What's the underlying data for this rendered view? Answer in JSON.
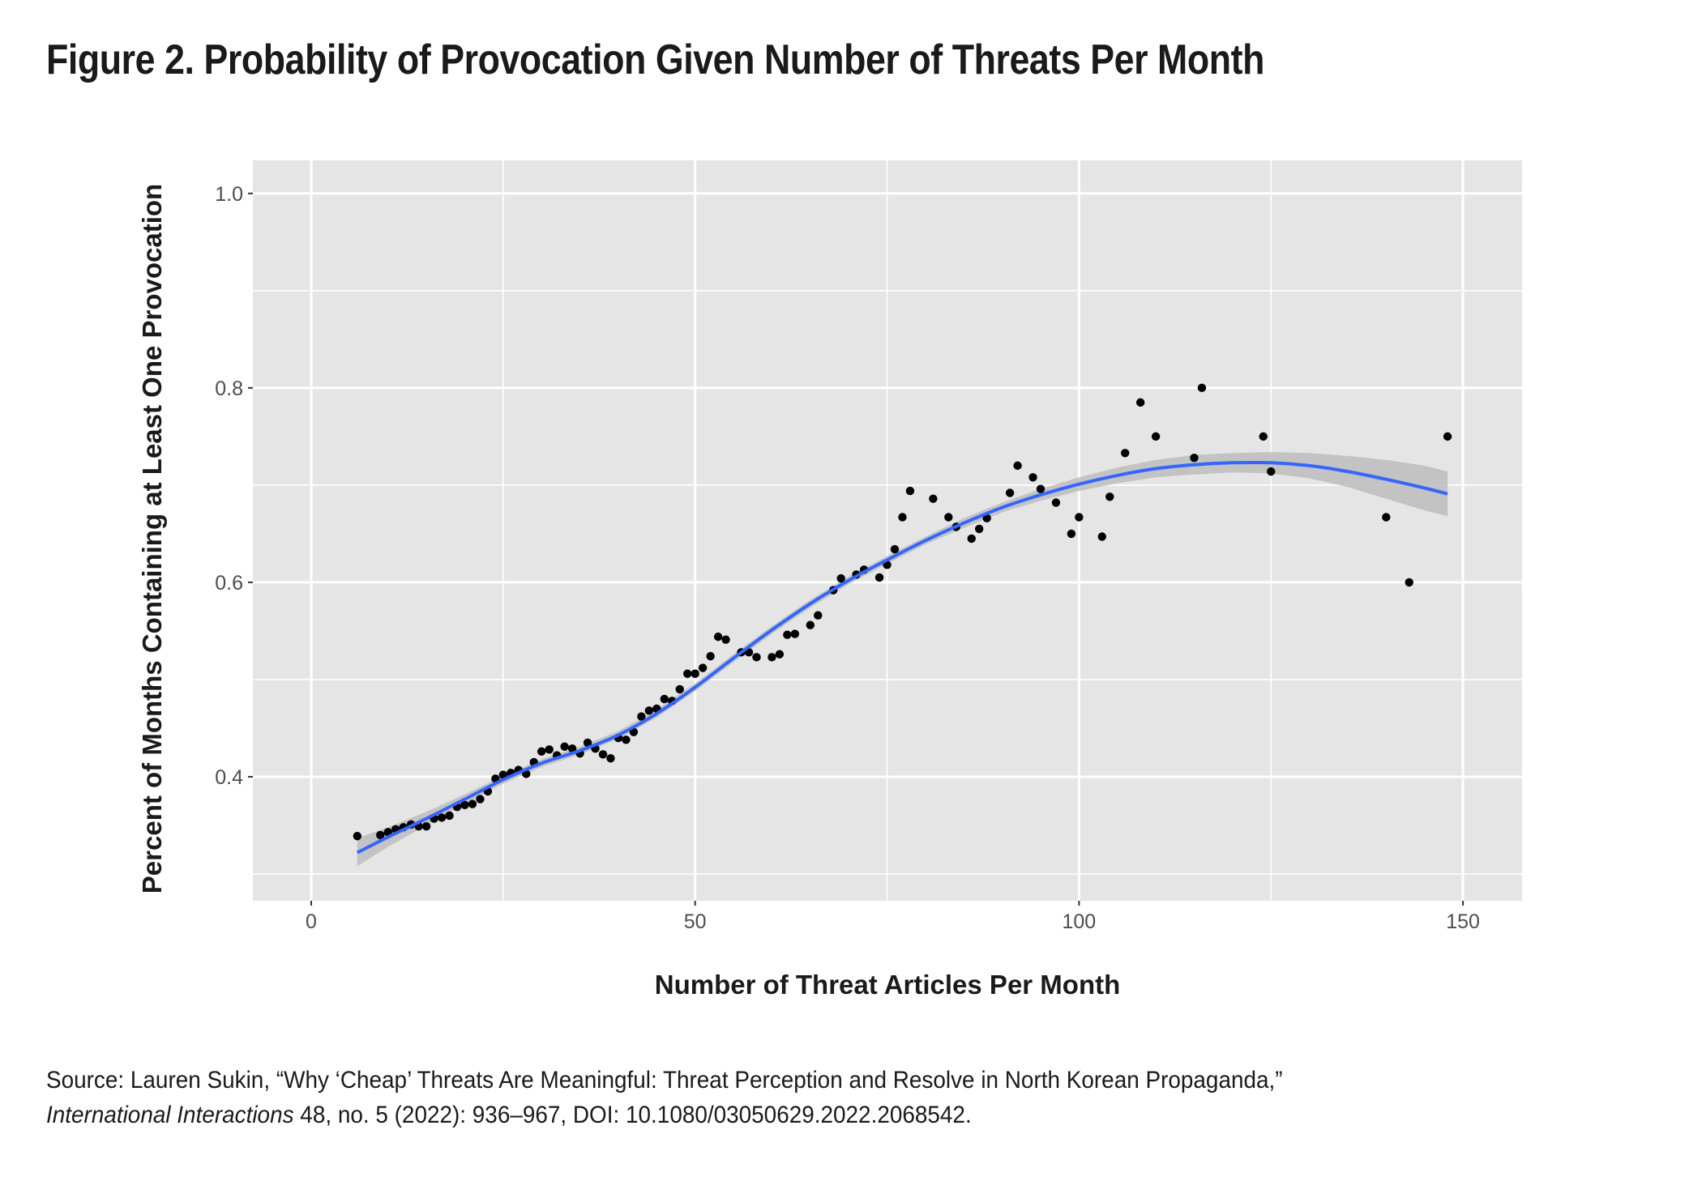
{
  "figure": {
    "title": "Figure 2. Probability of Provocation Given Number of Threats Per Month",
    "source_line1": "Source: Lauren Sukin, “Why ‘Cheap’ Threats Are Meaningful: Threat Perception and Resolve in North Korean Propaganda,”",
    "source_journal": "International Interactions",
    "source_line2_rest": " 48, no. 5 (2022): 936–967, DOI: 10.1080/03050629.2022.2068542."
  },
  "colors": {
    "panel_background": "#e5e5e5",
    "grid": "#ffffff",
    "points": "#000000",
    "smooth_line": "#3366ff",
    "ribbon": "#bdbdbd"
  },
  "chart_data": {
    "type": "scatter",
    "title": "Figure 2. Probability of Provocation Given Number of Threats Per Month",
    "xlabel": "Number of Threat Articles Per Month",
    "ylabel": "Percent of Months Containing at Least One Provocation",
    "xlim": [
      -7.6,
      157.7
    ],
    "ylim": [
      0.2725,
      1.034
    ],
    "x_ticks": [
      0,
      50,
      100,
      150
    ],
    "x_tick_labels": [
      "0",
      "50",
      "100",
      "150"
    ],
    "x_minor_ticks": [
      25,
      75,
      125
    ],
    "y_ticks": [
      0.4,
      0.6,
      0.8,
      1.0
    ],
    "y_tick_labels": [
      "0.4",
      "0.6",
      "0.8",
      "1.0"
    ],
    "y_minor_ticks": [
      0.3,
      0.5,
      0.7,
      0.9
    ],
    "grid": true,
    "legend": "none",
    "points": [
      [
        6,
        0.339
      ],
      [
        9,
        0.34
      ],
      [
        10,
        0.343
      ],
      [
        11,
        0.346
      ],
      [
        12,
        0.348
      ],
      [
        13,
        0.351
      ],
      [
        14,
        0.349
      ],
      [
        15,
        0.349
      ],
      [
        16,
        0.357
      ],
      [
        17,
        0.358
      ],
      [
        18,
        0.36
      ],
      [
        19,
        0.369
      ],
      [
        20,
        0.371
      ],
      [
        21,
        0.372
      ],
      [
        22,
        0.377
      ],
      [
        23,
        0.385
      ],
      [
        24,
        0.398
      ],
      [
        25,
        0.402
      ],
      [
        26,
        0.404
      ],
      [
        27,
        0.407
      ],
      [
        28,
        0.403
      ],
      [
        29,
        0.415
      ],
      [
        30,
        0.426
      ],
      [
        31,
        0.428
      ],
      [
        32,
        0.422
      ],
      [
        33,
        0.431
      ],
      [
        34,
        0.429
      ],
      [
        35,
        0.424
      ],
      [
        36,
        0.435
      ],
      [
        37,
        0.429
      ],
      [
        38,
        0.423
      ],
      [
        39,
        0.419
      ],
      [
        40,
        0.44
      ],
      [
        41,
        0.438
      ],
      [
        42,
        0.446
      ],
      [
        43,
        0.462
      ],
      [
        44,
        0.468
      ],
      [
        45,
        0.47
      ],
      [
        46,
        0.48
      ],
      [
        47,
        0.478
      ],
      [
        48,
        0.49
      ],
      [
        49,
        0.506
      ],
      [
        50,
        0.506
      ],
      [
        51,
        0.512
      ],
      [
        52,
        0.524
      ],
      [
        53,
        0.544
      ],
      [
        54,
        0.541
      ],
      [
        56,
        0.528
      ],
      [
        57,
        0.528
      ],
      [
        58,
        0.523
      ],
      [
        60,
        0.523
      ],
      [
        61,
        0.526
      ],
      [
        62,
        0.546
      ],
      [
        63,
        0.547
      ],
      [
        65,
        0.556
      ],
      [
        66,
        0.566
      ],
      [
        68,
        0.592
      ],
      [
        69,
        0.604
      ],
      [
        71,
        0.608
      ],
      [
        72,
        0.613
      ],
      [
        74,
        0.605
      ],
      [
        75,
        0.618
      ],
      [
        76,
        0.634
      ],
      [
        77,
        0.667
      ],
      [
        78,
        0.694
      ],
      [
        81,
        0.686
      ],
      [
        83,
        0.667
      ],
      [
        84,
        0.657
      ],
      [
        86,
        0.645
      ],
      [
        87,
        0.655
      ],
      [
        88,
        0.666
      ],
      [
        91,
        0.692
      ],
      [
        92,
        0.72
      ],
      [
        94,
        0.708
      ],
      [
        95,
        0.696
      ],
      [
        97,
        0.682
      ],
      [
        99,
        0.65
      ],
      [
        100,
        0.667
      ],
      [
        103,
        0.647
      ],
      [
        104,
        0.688
      ],
      [
        106,
        0.733
      ],
      [
        108,
        0.785
      ],
      [
        110,
        0.75
      ],
      [
        115,
        0.728
      ],
      [
        116,
        0.8
      ],
      [
        124,
        0.75
      ],
      [
        125,
        0.714
      ],
      [
        140,
        0.667
      ],
      [
        143,
        0.6
      ],
      [
        148,
        0.75
      ]
    ],
    "smooth": {
      "method": "loess",
      "x": [
        6,
        10,
        15,
        20,
        25,
        30,
        35,
        40,
        45,
        50,
        55,
        60,
        65,
        70,
        75,
        80,
        85,
        90,
        95,
        100,
        105,
        110,
        115,
        120,
        125,
        130,
        135,
        140,
        145,
        148
      ],
      "y": [
        0.322,
        0.338,
        0.357,
        0.377,
        0.397,
        0.414,
        0.427,
        0.443,
        0.465,
        0.492,
        0.522,
        0.551,
        0.578,
        0.602,
        0.623,
        0.643,
        0.661,
        0.677,
        0.69,
        0.701,
        0.71,
        0.717,
        0.721,
        0.723,
        0.723,
        0.72,
        0.714,
        0.706,
        0.697,
        0.691
      ],
      "lower": [
        0.308,
        0.328,
        0.35,
        0.372,
        0.393,
        0.41,
        0.423,
        0.439,
        0.461,
        0.488,
        0.518,
        0.547,
        0.574,
        0.598,
        0.619,
        0.639,
        0.656,
        0.672,
        0.684,
        0.694,
        0.702,
        0.708,
        0.711,
        0.713,
        0.712,
        0.707,
        0.698,
        0.686,
        0.674,
        0.668
      ],
      "upper": [
        0.337,
        0.348,
        0.364,
        0.382,
        0.401,
        0.418,
        0.431,
        0.447,
        0.469,
        0.496,
        0.526,
        0.555,
        0.582,
        0.606,
        0.627,
        0.647,
        0.666,
        0.682,
        0.696,
        0.708,
        0.718,
        0.726,
        0.731,
        0.733,
        0.734,
        0.733,
        0.73,
        0.726,
        0.72,
        0.714
      ]
    }
  }
}
